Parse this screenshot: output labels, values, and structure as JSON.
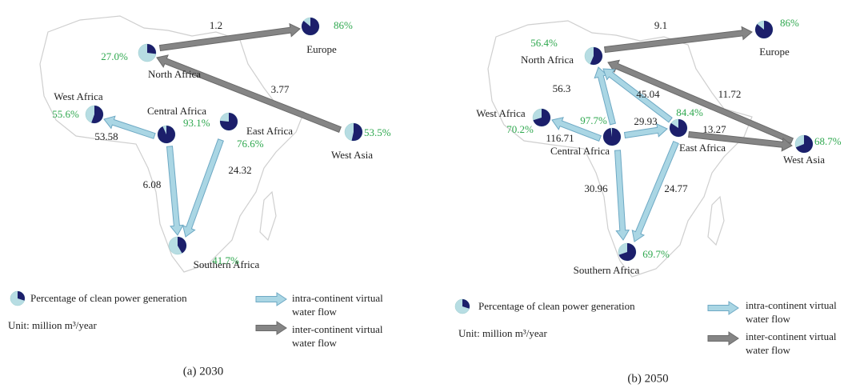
{
  "panels": [
    {
      "caption": "(a) 2030",
      "regions": [
        {
          "name": "North Africa",
          "clean_share": {
            "value": 27.0,
            "label": "27.0%"
          }
        },
        {
          "name": "Europe",
          "clean_share": {
            "value": 86,
            "label": "86%"
          }
        },
        {
          "name": "West Asia",
          "clean_share": {
            "value": 53.5,
            "label": "53.5%"
          }
        },
        {
          "name": "West Africa",
          "clean_share": {
            "value": 55.6,
            "label": "55.6%"
          }
        },
        {
          "name": "Central Africa",
          "clean_share": {
            "value": 93.1,
            "label": "93.1%"
          }
        },
        {
          "name": "East Africa",
          "clean_share": {
            "value": 76.6,
            "label": "76.6%"
          }
        },
        {
          "name": "Southern Africa",
          "clean_share": {
            "value": 41.7,
            "label": "41.7%"
          }
        }
      ],
      "flows": [
        {
          "value": 1.2,
          "kind": "inter"
        },
        {
          "value": 3.77,
          "kind": "inter"
        },
        {
          "value": 53.58,
          "kind": "intra"
        },
        {
          "value": 6.08,
          "kind": "intra"
        },
        {
          "value": 24.32,
          "kind": "intra"
        }
      ],
      "legend": {
        "pie_label": "Percentage of clean power generation",
        "unit": "Unit: million m³/year",
        "intra": [
          "intra-continent virtual",
          "water flow"
        ],
        "inter": [
          "inter-continent virtual",
          "water flow"
        ]
      }
    },
    {
      "caption": "(b) 2050",
      "regions": [
        {
          "name": "North Africa",
          "clean_share": {
            "value": 56.4,
            "label": "56.4%"
          }
        },
        {
          "name": "Europe",
          "clean_share": {
            "value": 86,
            "label": "86%"
          }
        },
        {
          "name": "West Asia",
          "clean_share": {
            "value": 68.7,
            "label": "68.7%"
          }
        },
        {
          "name": "West Africa",
          "clean_share": {
            "value": 70.2,
            "label": "70.2%"
          }
        },
        {
          "name": "Central Africa",
          "clean_share": {
            "value": 97.7,
            "label": "97.7%"
          }
        },
        {
          "name": "East Africa",
          "clean_share": {
            "value": 84.4,
            "label": "84.4%"
          }
        },
        {
          "name": "Southern Africa",
          "clean_share": {
            "value": 69.7,
            "label": "69.7%"
          }
        }
      ],
      "flows": [
        {
          "value": 9.1,
          "kind": "inter"
        },
        {
          "value": 11.72,
          "kind": "inter"
        },
        {
          "value": 116.71,
          "kind": "intra"
        },
        {
          "value": 56.3,
          "kind": "intra"
        },
        {
          "value": 45.04,
          "kind": "intra"
        },
        {
          "value": 29.93,
          "kind": "intra"
        },
        {
          "value": 13.27,
          "kind": "inter"
        },
        {
          "value": 30.96,
          "kind": "intra"
        },
        {
          "value": 24.77,
          "kind": "intra"
        }
      ],
      "legend": {
        "pie_label": "Percentage of clean power generation",
        "unit": "Unit: million m³/year",
        "intra": [
          "intra-continent virtual",
          "water flow"
        ],
        "inter": [
          "inter-continent virtual",
          "water flow"
        ]
      }
    }
  ]
}
